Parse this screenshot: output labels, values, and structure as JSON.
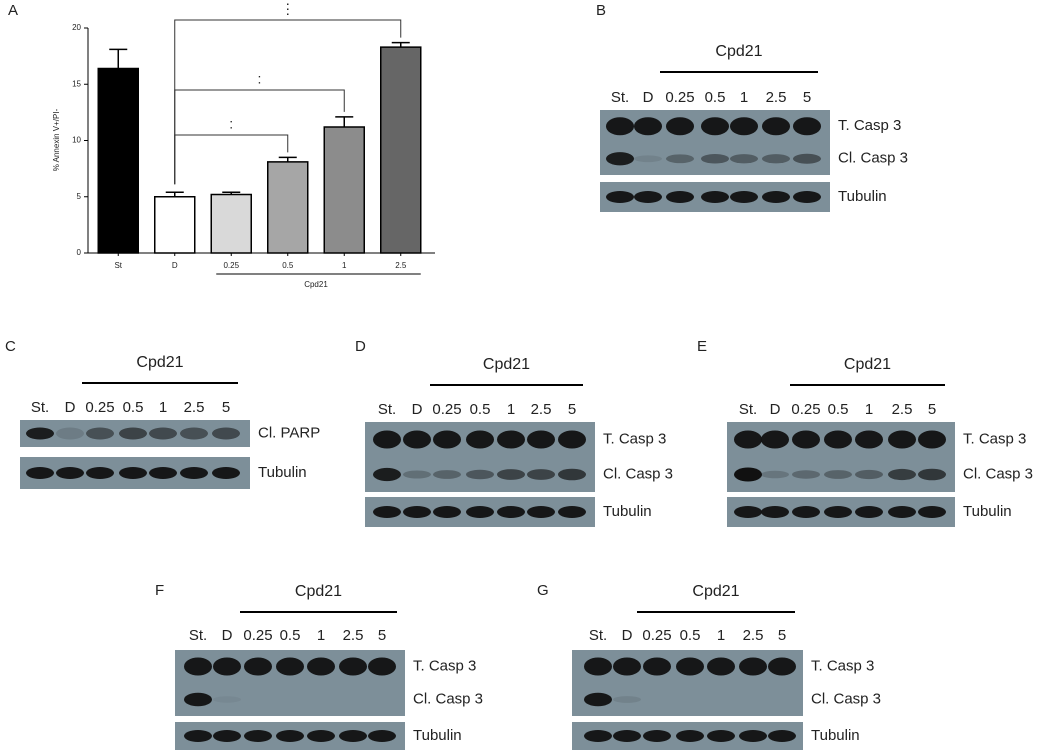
{
  "chart_data": {
    "type": "bar",
    "panel": "A",
    "y_label": "% Annexin V+/PI-",
    "categories": [
      "St",
      "D",
      "0.25",
      "0.5",
      "1",
      "2.5"
    ],
    "values": [
      16.4,
      5.0,
      5.2,
      8.1,
      11.2,
      18.3
    ],
    "errors": [
      1.7,
      0.4,
      0.2,
      0.4,
      0.9,
      0.4
    ],
    "colors": [
      "#000000",
      "#ffffff",
      "#d9d9d9",
      "#a6a6a6",
      "#8c8c8c",
      "#666666"
    ],
    "ylim": [
      0,
      20
    ],
    "yticks": [
      0,
      5,
      10,
      15,
      20
    ],
    "group_label": "Cpd21",
    "annotations": [
      ":",
      ":",
      "⋮"
    ]
  },
  "blots": [
    {
      "panel": "B",
      "group_label": "Cpd21",
      "lanes": [
        "St.",
        "D",
        "0.25",
        "0.5",
        "1",
        "2.5",
        "5"
      ],
      "strips": [
        [
          "T. Casp 3",
          "Cl. Casp 3"
        ],
        [
          "Tubulin"
        ]
      ]
    },
    {
      "panel": "C",
      "group_label": "Cpd21",
      "lanes": [
        "St.",
        "D",
        "0.25",
        "0.5",
        "1",
        "2.5",
        "5"
      ],
      "strips": [
        [
          "Cl. PARP"
        ],
        [
          "Tubulin"
        ]
      ]
    },
    {
      "panel": "D",
      "group_label": "Cpd21",
      "lanes": [
        "St.",
        "D",
        "0.25",
        "0.5",
        "1",
        "2.5",
        "5"
      ],
      "strips": [
        [
          "T. Casp 3",
          "Cl. Casp 3"
        ],
        [
          "Tubulin"
        ]
      ]
    },
    {
      "panel": "E",
      "group_label": "Cpd21",
      "lanes": [
        "St.",
        "D",
        "0.25",
        "0.5",
        "1",
        "2.5",
        "5"
      ],
      "strips": [
        [
          "T. Casp 3",
          "Cl. Casp 3"
        ],
        [
          "Tubulin"
        ]
      ]
    },
    {
      "panel": "F",
      "group_label": "Cpd21",
      "lanes": [
        "St.",
        "D",
        "0.25",
        "0.5",
        "1",
        "2.5",
        "5"
      ],
      "strips": [
        [
          "T. Casp 3",
          "Cl. Casp 3"
        ],
        [
          "Tubulin"
        ]
      ]
    },
    {
      "panel": "G",
      "group_label": "Cpd21",
      "lanes": [
        "St.",
        "D",
        "0.25",
        "0.5",
        "1",
        "2.5",
        "5"
      ],
      "strips": [
        [
          "T. Casp 3",
          "Cl. Casp 3"
        ],
        [
          "Tubulin"
        ]
      ]
    }
  ]
}
